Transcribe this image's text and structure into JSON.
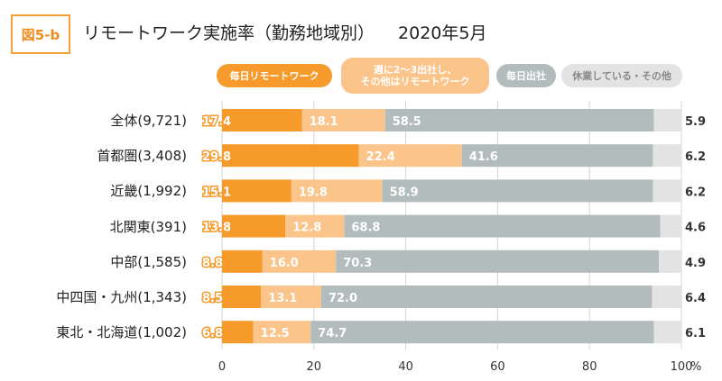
{
  "figure": {
    "badge": "図5-b",
    "title": "リモートワーク実施率（勤務地域別）",
    "period": "2020年5月"
  },
  "colors": {
    "daily_remote": "#f59a2b",
    "partial_remote": "#fbc48a",
    "daily_office": "#b3bcbc",
    "other": "#e3e3e3",
    "badge": "#f5a033"
  },
  "legend": [
    {
      "label": "毎日リモートワーク",
      "color": "#f59a2b"
    },
    {
      "label": "週に2〜3出社し、\nその他はリモートワーク",
      "color": "#fbc48a"
    },
    {
      "label": "毎日出社",
      "color": "#b3bcbc"
    },
    {
      "label": "休業している・その他",
      "color": "#e3e3e3"
    }
  ],
  "chart_data": {
    "type": "bar",
    "orientation": "horizontal",
    "stacked": true,
    "categories": [
      "全体(9,721)",
      "首都圏(3,408)",
      "近畿(1,992)",
      "北関東(391)",
      "中部(1,585)",
      "中四国・九州(1,343)",
      "東北・北海道(1,002)"
    ],
    "series": [
      {
        "name": "毎日リモートワーク",
        "values": [
          17.4,
          29.8,
          15.1,
          13.8,
          8.8,
          8.5,
          6.8
        ]
      },
      {
        "name": "週に2〜3出社し、その他はリモートワーク",
        "values": [
          18.1,
          22.4,
          19.8,
          12.8,
          16.0,
          13.1,
          12.5
        ]
      },
      {
        "name": "毎日出社",
        "values": [
          58.5,
          41.6,
          58.9,
          68.8,
          70.3,
          72.0,
          74.7
        ]
      },
      {
        "name": "休業している・その他",
        "values": [
          5.9,
          6.2,
          6.2,
          4.6,
          4.9,
          6.4,
          6.1
        ]
      }
    ],
    "xlim": [
      0,
      100
    ],
    "xticks": [
      0,
      20,
      40,
      60,
      80,
      100
    ],
    "xunit": "%",
    "grid": "vertical"
  }
}
